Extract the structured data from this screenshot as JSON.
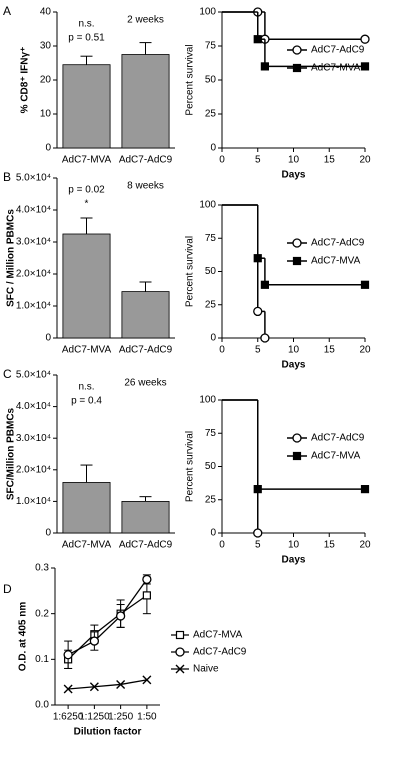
{
  "chart_data": [
    {
      "type": "bar",
      "panel_label": "A",
      "subtitle": "2 weeks",
      "annotations": [
        "n.s.",
        "p = 0.51"
      ],
      "ylabel": "% CD8⁺ IFNγ⁺",
      "categories": [
        "AdC7-MVA",
        "AdC7-AdC9"
      ],
      "values": [
        24.5,
        27.5
      ],
      "errors": [
        2.5,
        3.5
      ],
      "color": "#999999",
      "ylim": [
        0,
        40
      ],
      "yticks": [
        0,
        10,
        20,
        30,
        40
      ]
    },
    {
      "type": "step",
      "ylabel": "Percent survival",
      "xlabel": "Days",
      "x": [
        0,
        5,
        6,
        20
      ],
      "series": [
        {
          "name": "AdC7-AdC9",
          "marker": "circle",
          "values": [
            100,
            100,
            80,
            80
          ]
        },
        {
          "name": "AdC7-MVA",
          "marker": "square",
          "values": [
            100,
            80,
            60,
            60
          ]
        }
      ],
      "xlim": [
        0,
        20
      ],
      "xticks": [
        0,
        5,
        10,
        15,
        20
      ],
      "ylim": [
        0,
        100
      ],
      "yticks": [
        0,
        25,
        50,
        75,
        100
      ]
    },
    {
      "type": "bar",
      "panel_label": "B",
      "subtitle": "8 weeks",
      "annotations": [
        "p = 0.02",
        "*"
      ],
      "ylabel": "SFC / Million PBMCs",
      "categories": [
        "AdC7-MVA",
        "AdC7-AdC9"
      ],
      "values": [
        32500,
        14500
      ],
      "errors": [
        5000,
        3000
      ],
      "color": "#999999",
      "ylim": [
        0,
        50000
      ],
      "yticks": [
        0,
        {
          "value": 10000,
          "label": "1.0×10⁴"
        },
        {
          "value": 20000,
          "label": "2.0×10⁴"
        },
        {
          "value": 30000,
          "label": "3.0×10⁴"
        },
        {
          "value": 40000,
          "label": "4.0×10⁴"
        },
        {
          "value": 50000,
          "label": "5.0×10⁴"
        }
      ]
    },
    {
      "type": "step",
      "ylabel": "Percent survival",
      "xlabel": "Days",
      "x": [
        0,
        5,
        6,
        20
      ],
      "series": [
        {
          "name": "AdC7-AdC9",
          "marker": "circle",
          "values": [
            100,
            20,
            0,
            null
          ]
        },
        {
          "name": "AdC7-MVA",
          "marker": "square",
          "values": [
            100,
            60,
            40,
            40
          ]
        }
      ],
      "xlim": [
        0,
        20
      ],
      "xticks": [
        0,
        5,
        10,
        15,
        20
      ],
      "ylim": [
        0,
        100
      ],
      "yticks": [
        0,
        25,
        50,
        75,
        100
      ]
    },
    {
      "type": "bar",
      "panel_label": "C",
      "subtitle": "26 weeks",
      "annotations": [
        "n.s.",
        "p = 0.4"
      ],
      "ylabel": "SFC/Million PBMCs",
      "categories": [
        "AdC7-MVA",
        "AdC7-AdC9"
      ],
      "values": [
        16000,
        10000
      ],
      "errors": [
        5500,
        1500
      ],
      "color": "#999999",
      "ylim": [
        0,
        50000
      ],
      "yticks": [
        0,
        {
          "value": 10000,
          "label": "1.0×10⁴"
        },
        {
          "value": 20000,
          "label": "2.0×10⁴"
        },
        {
          "value": 30000,
          "label": "3.0×10⁴"
        },
        {
          "value": 40000,
          "label": "4.0×10⁴"
        },
        {
          "value": 50000,
          "label": "5.0×10⁴"
        }
      ]
    },
    {
      "type": "step",
      "ylabel": "Percent survival",
      "xlabel": "Days",
      "x": [
        0,
        5,
        20
      ],
      "series": [
        {
          "name": "AdC7-AdC9",
          "marker": "circle",
          "values": [
            100,
            0,
            null
          ]
        },
        {
          "name": "AdC7-MVA",
          "marker": "square",
          "values": [
            100,
            33,
            33
          ]
        }
      ],
      "xlim": [
        0,
        20
      ],
      "xticks": [
        0,
        5,
        10,
        15,
        20
      ],
      "ylim": [
        0,
        100
      ],
      "yticks": [
        0,
        25,
        50,
        75,
        100
      ]
    },
    {
      "type": "line",
      "panel_label": "D",
      "ylabel": "O.D. at 405 nm",
      "xlabel": "Dilution factor",
      "categories": [
        "1:6250",
        "1:1250",
        "1:250",
        "1:50"
      ],
      "series": [
        {
          "name": "AdC7-MVA",
          "marker": "square",
          "values": [
            0.1,
            0.155,
            0.2,
            0.24
          ],
          "errors": [
            0.02,
            0.02,
            0.03,
            0.04
          ]
        },
        {
          "name": "AdC7-AdC9",
          "marker": "circle",
          "values": [
            0.11,
            0.14,
            0.195,
            0.275
          ],
          "errors": [
            0.03,
            0.02,
            0.025,
            0.01
          ]
        },
        {
          "name": "Naive",
          "marker": "cross",
          "values": [
            0.035,
            0.04,
            0.045,
            0.055
          ]
        }
      ],
      "ylim": [
        0,
        0.3
      ],
      "yticks": [
        {
          "value": 0,
          "label": "0.0"
        },
        0.1,
        0.2,
        0.3
      ]
    }
  ]
}
